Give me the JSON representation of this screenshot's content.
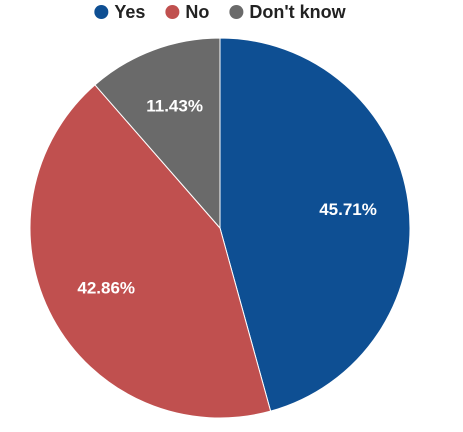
{
  "chart_data": {
    "type": "pie",
    "categories": [
      "Yes",
      "No",
      "Don't know"
    ],
    "values": [
      45.71,
      42.86,
      11.43
    ],
    "value_labels": [
      "45.71%",
      "42.86%",
      "11.43%"
    ],
    "colors": [
      "#0e4f93",
      "#c0504f",
      "#6a6a6a"
    ],
    "legend": "top"
  }
}
